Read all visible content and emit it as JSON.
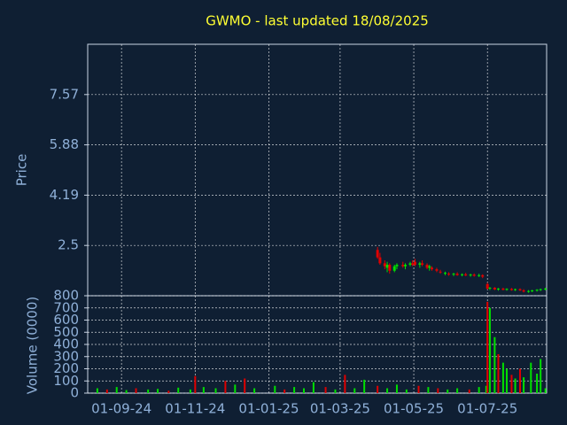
{
  "chart_data": [
    {
      "type": "candlestick",
      "title": "GWMO - last updated 18/08/2025",
      "ylabel": "Price",
      "up_color": "#00e000",
      "down_color": "#e00000",
      "xlim": [
        "04-08-24",
        "19-08-25"
      ],
      "ylim": [
        0.81,
        9.26
      ],
      "yticks": [
        2.5,
        4.19,
        5.88,
        7.57
      ],
      "grid": true,
      "dates": [
        "01-04-25",
        "03-04-25",
        "07-04-25",
        "09-04-25",
        "11-04-25",
        "15-04-25",
        "17-04-25",
        "22-04-25",
        "24-04-25",
        "28-04-25",
        "30-04-25",
        "02-05-25",
        "06-05-25",
        "08-05-25",
        "12-05-25",
        "14-05-25",
        "16-05-25",
        "20-05-25",
        "23-05-25",
        "27-05-25",
        "30-05-25",
        "03-06-25",
        "06-06-25",
        "10-06-25",
        "13-06-25",
        "17-06-25",
        "20-06-25",
        "24-06-25",
        "27-06-25",
        "01-07-25",
        "03-07-25",
        "07-07-25",
        "10-07-25",
        "14-07-25",
        "17-07-25",
        "21-07-25",
        "24-07-25",
        "28-07-25",
        "31-07-25",
        "04-08-25",
        "07-08-25",
        "11-08-25",
        "14-08-25",
        "18-08-25"
      ],
      "open": [
        2.35,
        2.1,
        1.9,
        1.75,
        1.85,
        1.65,
        1.8,
        1.85,
        1.8,
        1.85,
        1.9,
        1.95,
        1.85,
        1.9,
        1.85,
        1.75,
        1.75,
        1.7,
        1.62,
        1.55,
        1.55,
        1.52,
        1.55,
        1.5,
        1.53,
        1.49,
        1.52,
        1.48,
        1.5,
        1.2,
        1.05,
        1.08,
        1.02,
        1.05,
        1.01,
        1.04,
        1.0,
        1.03,
        0.99,
        0.95,
        0.97,
        0.99,
        1.01,
        1.03
      ],
      "high": [
        2.45,
        2.25,
        2.0,
        1.95,
        1.9,
        1.85,
        1.9,
        1.95,
        1.9,
        1.95,
        2.0,
        2.05,
        1.95,
        2.0,
        1.9,
        1.85,
        1.8,
        1.75,
        1.68,
        1.62,
        1.6,
        1.58,
        1.6,
        1.56,
        1.58,
        1.55,
        1.56,
        1.55,
        1.53,
        1.25,
        1.1,
        1.1,
        1.07,
        1.08,
        1.06,
        1.07,
        1.05,
        1.06,
        1.03,
        1.0,
        1.01,
        1.03,
        1.05,
        1.08
      ],
      "low": [
        2.05,
        1.85,
        1.7,
        1.6,
        1.55,
        1.6,
        1.7,
        1.75,
        1.7,
        1.8,
        1.8,
        1.8,
        1.75,
        1.8,
        1.7,
        1.65,
        1.65,
        1.6,
        1.55,
        1.5,
        1.48,
        1.47,
        1.48,
        1.46,
        1.47,
        1.45,
        1.45,
        1.44,
        1.4,
        1.02,
        1.0,
        1.0,
        0.98,
        0.99,
        0.98,
        0.98,
        0.97,
        0.97,
        0.92,
        0.91,
        0.93,
        0.95,
        0.97,
        0.99
      ],
      "close": [
        2.1,
        1.9,
        1.8,
        1.85,
        1.65,
        1.8,
        1.85,
        1.8,
        1.85,
        1.9,
        1.85,
        1.85,
        1.9,
        1.85,
        1.75,
        1.8,
        1.7,
        1.65,
        1.6,
        1.58,
        1.52,
        1.55,
        1.5,
        1.53,
        1.49,
        1.52,
        1.48,
        1.5,
        1.45,
        1.05,
        1.08,
        1.02,
        1.05,
        1.01,
        1.04,
        1.0,
        1.03,
        0.99,
        0.95,
        0.97,
        0.99,
        1.01,
        1.03,
        1.05
      ]
    },
    {
      "type": "bar",
      "ylabel": "Volume (0000)",
      "xlim": [
        "04-08-24",
        "19-08-25"
      ],
      "xticks": [
        "01-09-24",
        "01-11-24",
        "01-01-25",
        "01-03-25",
        "01-05-25",
        "01-07-25"
      ],
      "ylim": [
        0,
        800
      ],
      "yticks": [
        0,
        100,
        200,
        300,
        400,
        500,
        600,
        700,
        800
      ],
      "grid": true,
      "dates": [
        "12-08-24",
        "20-08-24",
        "28-08-24",
        "05-09-24",
        "13-09-24",
        "23-09-24",
        "01-10-24",
        "10-10-24",
        "18-10-24",
        "28-10-24",
        "01-11-24",
        "08-11-24",
        "18-11-24",
        "26-11-24",
        "04-12-24",
        "12-12-24",
        "20-12-24",
        "06-01-25",
        "14-01-25",
        "22-01-25",
        "30-01-25",
        "07-02-25",
        "17-02-25",
        "25-02-25",
        "05-03-25",
        "13-03-25",
        "21-03-25",
        "01-04-25",
        "09-04-25",
        "17-04-25",
        "25-04-25",
        "05-05-25",
        "13-05-25",
        "21-05-25",
        "29-05-25",
        "06-06-25",
        "16-06-25",
        "24-06-25",
        "30-06-25",
        "01-07-25",
        "03-07-25",
        "07-07-25",
        "10-07-25",
        "14-07-25",
        "17-07-25",
        "21-07-25",
        "24-07-25",
        "28-07-25",
        "31-07-25",
        "06-08-25",
        "11-08-25",
        "14-08-25",
        "18-08-25"
      ],
      "values": [
        40,
        30,
        50,
        25,
        40,
        30,
        35,
        20,
        45,
        30,
        140,
        50,
        40,
        100,
        70,
        120,
        40,
        60,
        30,
        50,
        40,
        90,
        50,
        30,
        150,
        40,
        110,
        60,
        40,
        70,
        30,
        60,
        50,
        40,
        30,
        40,
        30,
        50,
        60,
        750,
        700,
        460,
        320,
        250,
        200,
        150,
        120,
        200,
        130,
        250,
        160,
        280,
        40
      ],
      "colors": [
        "#00e000",
        "#e00000",
        "#00e000",
        "#00e000",
        "#e00000",
        "#00e000",
        "#00e000",
        "#e00000",
        "#00e000",
        "#00e000",
        "#e00000",
        "#00e000",
        "#00e000",
        "#e00000",
        "#00e000",
        "#e00000",
        "#00e000",
        "#00e000",
        "#e00000",
        "#00e000",
        "#00e000",
        "#00e000",
        "#e00000",
        "#00e000",
        "#e00000",
        "#00e000",
        "#00e000",
        "#e00000",
        "#00e000",
        "#00e000",
        "#00e000",
        "#e00000",
        "#00e000",
        "#e00000",
        "#00e000",
        "#00e000",
        "#e00000",
        "#00e000",
        "#00e000",
        "#e00000",
        "#00e000",
        "#00e000",
        "#e00000",
        "#00e000",
        "#00e000",
        "#e00000",
        "#00e000",
        "#e00000",
        "#00e000",
        "#00e000",
        "#00e000",
        "#00e000",
        "#00e000"
      ]
    }
  ]
}
